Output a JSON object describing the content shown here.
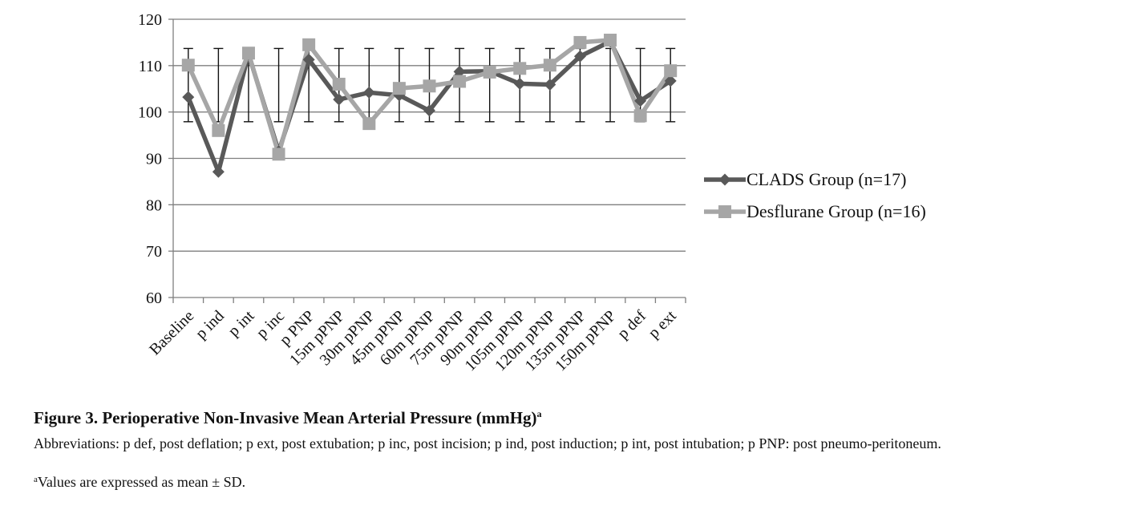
{
  "chart_data": {
    "type": "line",
    "categories": [
      "Baseline",
      "p ind",
      "p int",
      "p inc",
      "p PNP",
      "15m pPNP",
      "30m pPNP",
      "45m pPNP",
      "60m pPNP",
      "75m pPNP",
      "90m pPNP",
      "105m pPNP",
      "120m pPNP",
      "135m pPNP",
      "150m pPNP",
      "p def",
      "p ext"
    ],
    "ylim": [
      60,
      120
    ],
    "yticks": [
      60,
      70,
      80,
      90,
      100,
      110,
      120
    ],
    "grid": true,
    "legend_position": "right",
    "series": [
      {
        "name": "CLADS Group (n=17)",
        "color": "#595959",
        "marker": "diamond",
        "values": [
          103.2,
          87.1,
          112.5,
          91.5,
          111.3,
          102.7,
          104.2,
          103.6,
          100.3,
          108.7,
          108.8,
          106.1,
          105.9,
          112.0,
          115.2,
          102.4,
          106.7
        ]
      },
      {
        "name": "Desflurane Group (n=16)",
        "color": "#a6a6a6",
        "marker": "square",
        "values": [
          110.1,
          96.0,
          112.7,
          90.9,
          114.5,
          106.0,
          97.5,
          105.1,
          105.6,
          106.6,
          108.6,
          109.4,
          110.1,
          115.0,
          115.5,
          99.2,
          108.9
        ]
      }
    ],
    "error_bars": {
      "upper": [
        113.7,
        113.7,
        113.7,
        113.7,
        113.7,
        113.7,
        113.7,
        113.7,
        113.7,
        113.7,
        113.7,
        113.7,
        113.7,
        113.7,
        113.7,
        113.7,
        113.7
      ],
      "lower": [
        97.9,
        97.9,
        97.9,
        97.9,
        97.9,
        97.9,
        97.9,
        97.9,
        97.9,
        97.9,
        97.9,
        97.9,
        97.9,
        97.9,
        97.9,
        97.9,
        97.9
      ]
    }
  },
  "caption": {
    "title": "Figure 3.  Perioperative Non-Invasive Mean Arterial Pressure (mmHg)",
    "title_sup": "a",
    "abbreviations": "Abbreviations: p def, post deflation; p ext, post extubation; p inc, post incision; p ind, post induction; p int, post intubation; p PNP: post pneumo-peritoneum.",
    "note_sup": "a",
    "note": "Values are expressed as mean ± SD."
  }
}
